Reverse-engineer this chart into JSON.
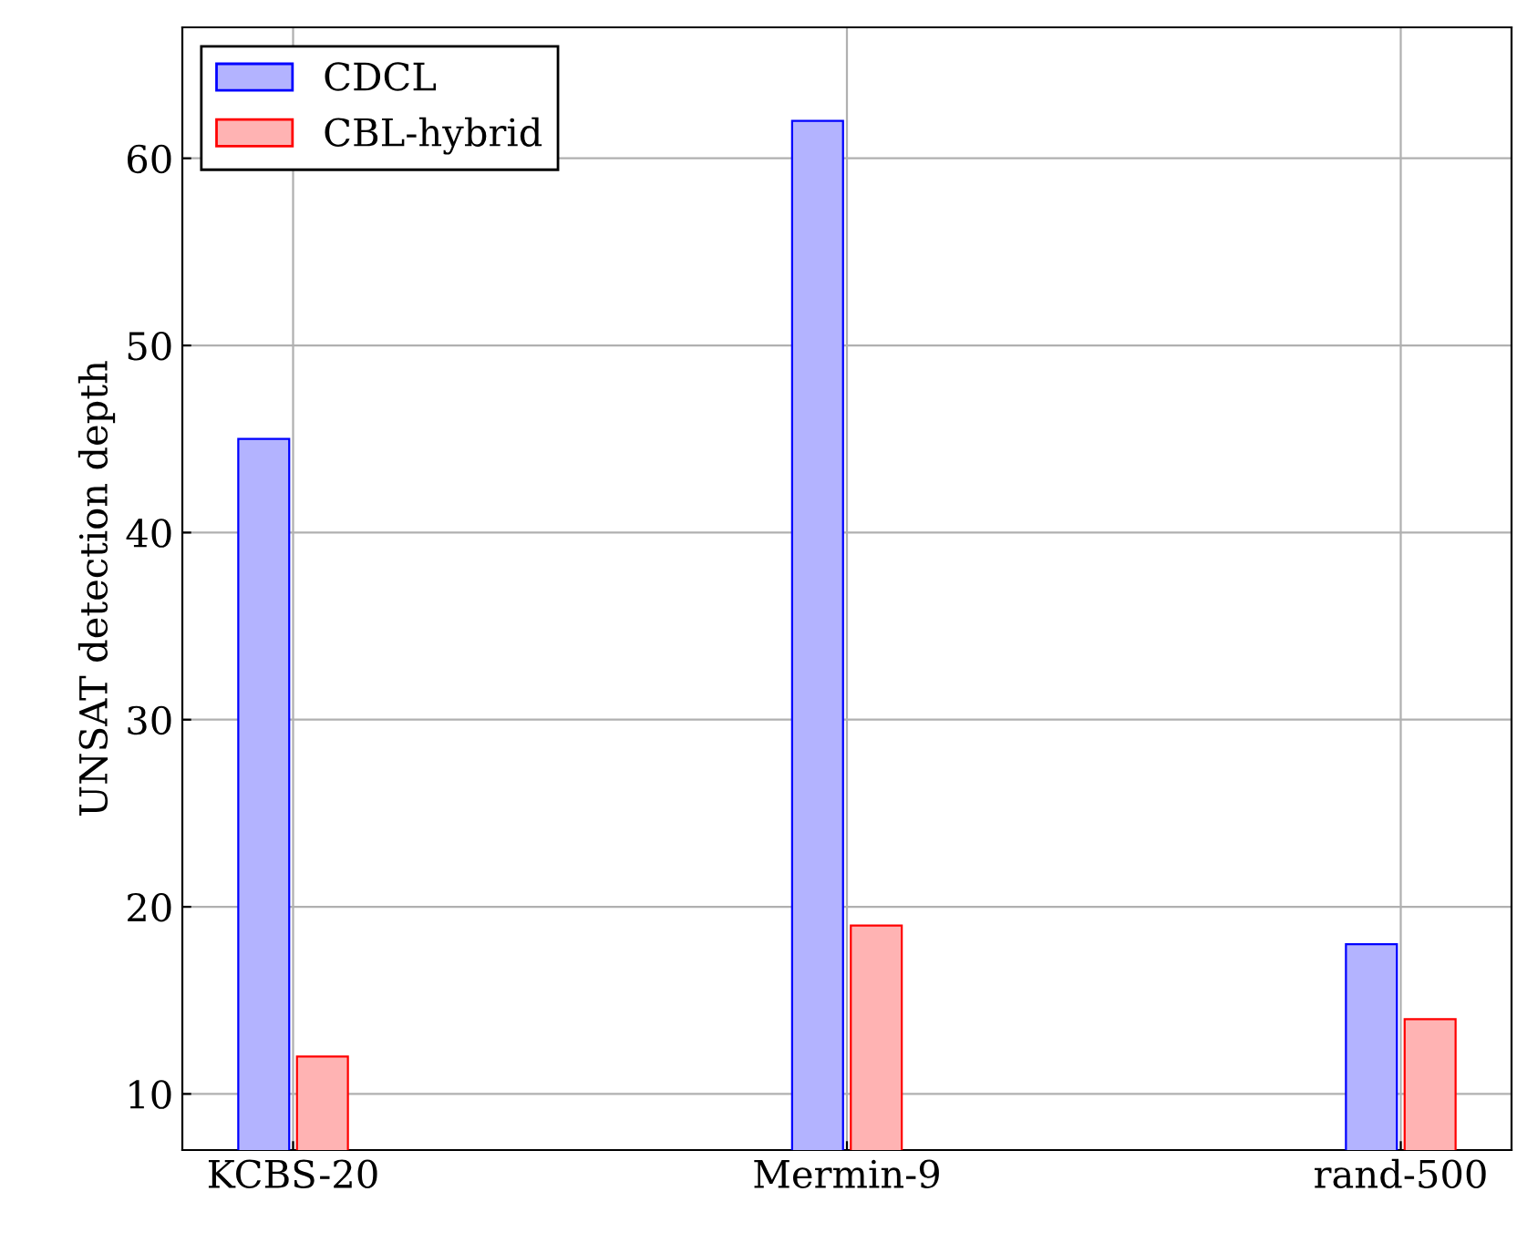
{
  "chart_data": {
    "type": "bar",
    "ylabel": "UNSAT detection depth",
    "categories": [
      "KCBS-20",
      "Mermin-9",
      "rand-500"
    ],
    "series": [
      {
        "name": "CDCL",
        "color": "#b3b3ff",
        "values": [
          45,
          62,
          18
        ]
      },
      {
        "name": "CBL-hybrid",
        "color": "#ffb3b3",
        "values": [
          12,
          19,
          14
        ]
      }
    ],
    "ylim": [
      7,
      67
    ],
    "yticks": [
      10,
      20,
      30,
      40,
      50,
      60
    ],
    "grid": true,
    "legend": "top left"
  }
}
